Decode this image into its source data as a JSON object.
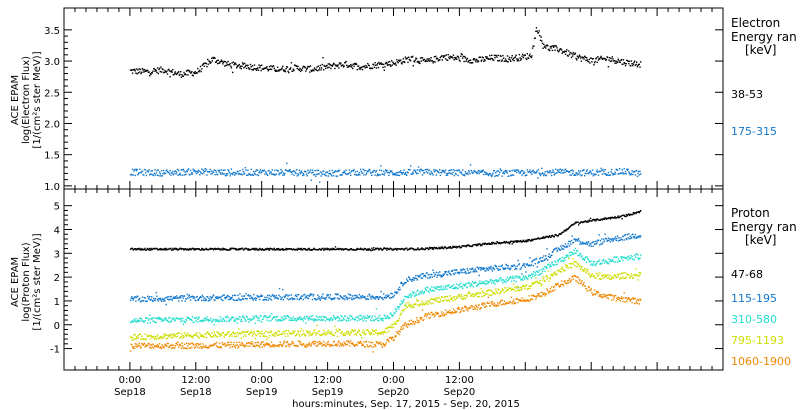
{
  "chart_data": [
    {
      "type": "scatter",
      "ylabel": [
        "ACE EPAM",
        "log(Electron Flux)",
        "[1/(cm²s ster MeV)]"
      ],
      "ylim": [
        0.95,
        3.85
      ],
      "yticks": [
        "1.0",
        "1.5",
        "2.0",
        "2.5",
        "3.0",
        "3.5"
      ],
      "legend_title": [
        "Electron",
        "Energy ran",
        "[keV]"
      ],
      "series": [
        {
          "name": "38-53",
          "color": "#000000",
          "points": [
            [
              0,
              2.85
            ],
            [
              3,
              2.84
            ],
            [
              6,
              2.87
            ],
            [
              9,
              2.8
            ],
            [
              12,
              2.83
            ],
            [
              15,
              3.04
            ],
            [
              18,
              2.95
            ],
            [
              21,
              2.93
            ],
            [
              24,
              2.9
            ],
            [
              27,
              2.88
            ],
            [
              30,
              2.9
            ],
            [
              33,
              2.88
            ],
            [
              36,
              2.92
            ],
            [
              39,
              2.96
            ],
            [
              42,
              2.92
            ],
            [
              45,
              2.95
            ],
            [
              48,
              2.98
            ],
            [
              51,
              3.05
            ],
            [
              54,
              3.0
            ],
            [
              57,
              3.08
            ],
            [
              60,
              3.05
            ],
            [
              63,
              3.02
            ],
            [
              66,
              3.06
            ],
            [
              69,
              3.05
            ],
            [
              72,
              3.08
            ],
            [
              73,
              3.1
            ],
            [
              74,
              3.55
            ],
            [
              75,
              3.3
            ],
            [
              76,
              3.22
            ],
            [
              78,
              3.2
            ],
            [
              81,
              3.08
            ],
            [
              84,
              3.02
            ],
            [
              87,
              3.05
            ],
            [
              90,
              2.99
            ],
            [
              93,
              2.96
            ]
          ]
        },
        {
          "name": "175-315",
          "color": "#1177cc",
          "points": [
            [
              0,
              1.23
            ],
            [
              6,
              1.22
            ],
            [
              12,
              1.24
            ],
            [
              18,
              1.22
            ],
            [
              24,
              1.23
            ],
            [
              30,
              1.22
            ],
            [
              36,
              1.21
            ],
            [
              42,
              1.23
            ],
            [
              48,
              1.22
            ],
            [
              54,
              1.23
            ],
            [
              60,
              1.22
            ],
            [
              66,
              1.21
            ],
            [
              72,
              1.22
            ],
            [
              78,
              1.23
            ],
            [
              84,
              1.22
            ],
            [
              90,
              1.24
            ],
            [
              93,
              1.2
            ]
          ]
        }
      ]
    },
    {
      "type": "scatter",
      "ylabel": [
        "ACE EPAM",
        "log(Proton Flux)",
        "[1/(cm²s ster MeV)]"
      ],
      "ylim": [
        -1.9,
        5.7
      ],
      "yticks": [
        "-1",
        "0",
        "1",
        "2",
        "3",
        "4",
        "5"
      ],
      "legend_title": [
        "Proton",
        "Energy ran",
        "[keV]"
      ],
      "series": [
        {
          "name": "47-68",
          "color": "#000000",
          "points": [
            [
              0,
              3.2
            ],
            [
              12,
              3.2
            ],
            [
              24,
              3.2
            ],
            [
              36,
              3.2
            ],
            [
              48,
              3.2
            ],
            [
              54,
              3.22
            ],
            [
              60,
              3.3
            ],
            [
              66,
              3.45
            ],
            [
              72,
              3.55
            ],
            [
              78,
              3.8
            ],
            [
              81,
              4.3
            ],
            [
              84,
              4.4
            ],
            [
              87,
              4.5
            ],
            [
              90,
              4.6
            ],
            [
              93,
              4.8
            ]
          ]
        },
        {
          "name": "115-195",
          "color": "#1177cc",
          "points": [
            [
              0,
              1.1
            ],
            [
              12,
              1.15
            ],
            [
              24,
              1.18
            ],
            [
              36,
              1.2
            ],
            [
              46,
              1.2
            ],
            [
              48,
              1.3
            ],
            [
              50,
              1.9
            ],
            [
              54,
              2.1
            ],
            [
              60,
              2.25
            ],
            [
              66,
              2.4
            ],
            [
              72,
              2.5
            ],
            [
              75,
              2.8
            ],
            [
              78,
              3.2
            ],
            [
              81,
              3.6
            ],
            [
              84,
              3.4
            ],
            [
              87,
              3.6
            ],
            [
              90,
              3.7
            ],
            [
              93,
              3.8
            ]
          ]
        },
        {
          "name": "310-580",
          "color": "#22ddcc",
          "points": [
            [
              0,
              0.2
            ],
            [
              12,
              0.25
            ],
            [
              24,
              0.3
            ],
            [
              36,
              0.3
            ],
            [
              46,
              0.3
            ],
            [
              48,
              0.5
            ],
            [
              50,
              1.2
            ],
            [
              54,
              1.5
            ],
            [
              60,
              1.65
            ],
            [
              66,
              1.85
            ],
            [
              72,
              2.0
            ],
            [
              75,
              2.3
            ],
            [
              78,
              2.7
            ],
            [
              81,
              3.1
            ],
            [
              84,
              2.6
            ],
            [
              87,
              2.7
            ],
            [
              90,
              2.85
            ],
            [
              93,
              2.9
            ]
          ]
        },
        {
          "name": "795-1193",
          "color": "#ccdd00",
          "points": [
            [
              0,
              -0.5
            ],
            [
              12,
              -0.4
            ],
            [
              24,
              -0.35
            ],
            [
              36,
              -0.3
            ],
            [
              46,
              -0.3
            ],
            [
              48,
              0.0
            ],
            [
              50,
              0.8
            ],
            [
              54,
              1.0
            ],
            [
              60,
              1.2
            ],
            [
              66,
              1.4
            ],
            [
              72,
              1.6
            ],
            [
              75,
              1.9
            ],
            [
              78,
              2.3
            ],
            [
              81,
              2.6
            ],
            [
              84,
              2.1
            ],
            [
              87,
              2.0
            ],
            [
              90,
              2.1
            ],
            [
              93,
              2.1
            ]
          ]
        },
        {
          "name": "1060-1900",
          "color": "#ee8800",
          "points": [
            [
              0,
              -0.85
            ],
            [
              12,
              -0.85
            ],
            [
              24,
              -0.8
            ],
            [
              36,
              -0.75
            ],
            [
              46,
              -0.8
            ],
            [
              48,
              -0.5
            ],
            [
              50,
              0.0
            ],
            [
              54,
              0.4
            ],
            [
              60,
              0.65
            ],
            [
              66,
              0.9
            ],
            [
              72,
              1.1
            ],
            [
              75,
              1.3
            ],
            [
              78,
              1.7
            ],
            [
              81,
              2.0
            ],
            [
              84,
              1.4
            ],
            [
              87,
              1.2
            ],
            [
              90,
              1.1
            ],
            [
              93,
              1.0
            ]
          ]
        }
      ]
    }
  ],
  "x_axis": {
    "range": [
      -12,
      108
    ],
    "ticks": [
      {
        "x": 0,
        "time": "0:00",
        "date": "Sep18"
      },
      {
        "x": 12,
        "time": "12:00",
        "date": "Sep18"
      },
      {
        "x": 24,
        "time": "0:00",
        "date": "Sep19"
      },
      {
        "x": 36,
        "time": "12:00",
        "date": "Sep19"
      },
      {
        "x": 48,
        "time": "0:00",
        "date": "Sep20"
      },
      {
        "x": 60,
        "time": "12:00",
        "date": "Sep20"
      }
    ],
    "label": "hours:minutes, Sep. 17, 2015 - Sep. 20, 2015"
  },
  "colors": {
    "black": "#000000",
    "blue": "#1177cc",
    "cyan": "#22ddcc",
    "yellow": "#ccdd00",
    "orange": "#ee8800"
  }
}
